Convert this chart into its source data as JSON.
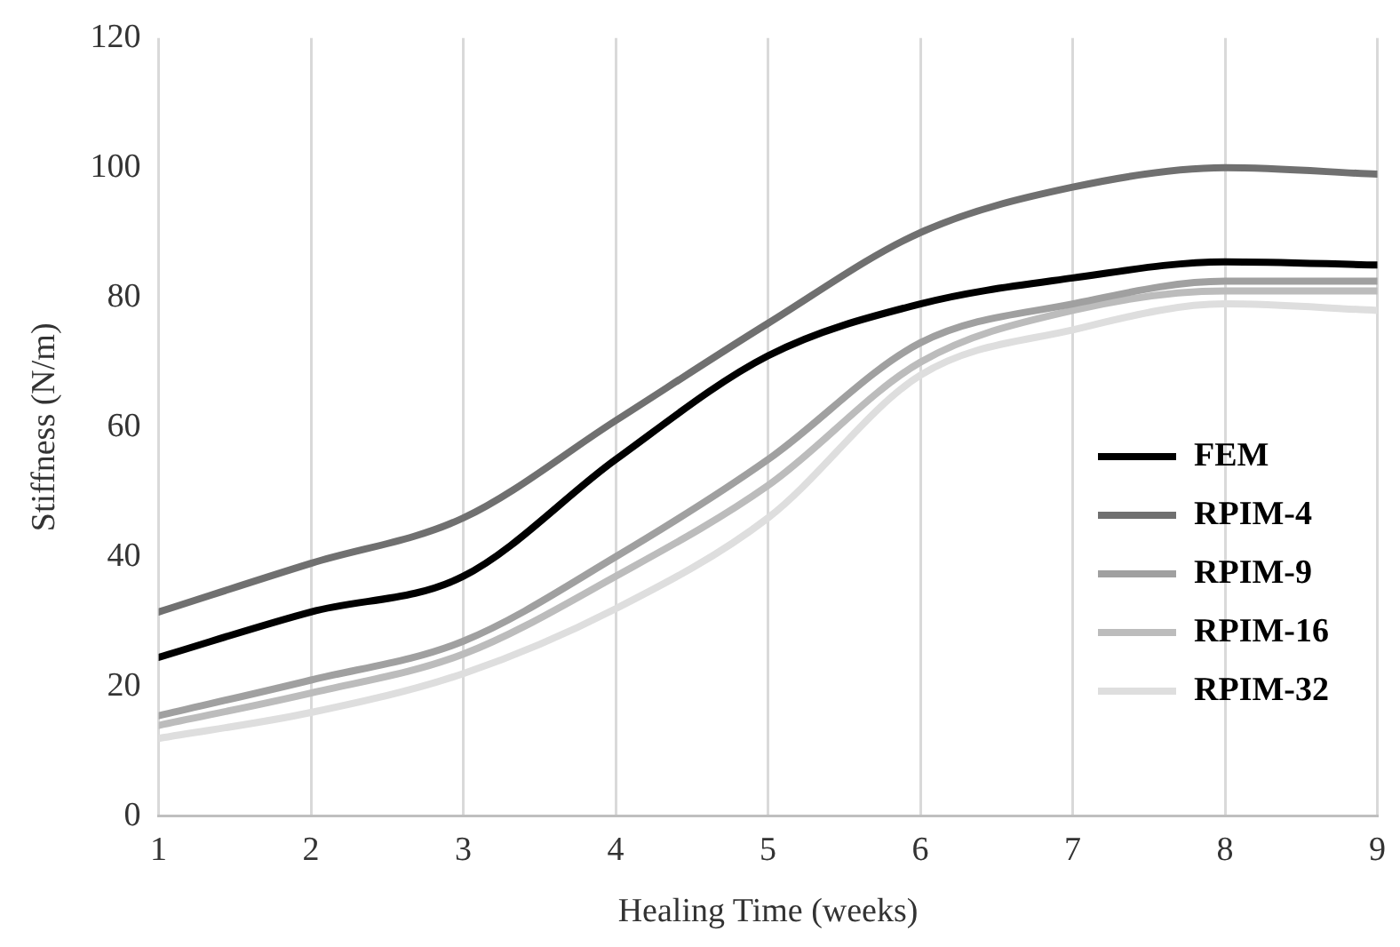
{
  "chart_data": {
    "type": "line",
    "xlabel": "Healing Time (weeks)",
    "ylabel": "Stiffness (N/m)",
    "x": [
      1,
      2,
      3,
      4,
      5,
      6,
      7,
      8,
      9
    ],
    "xlim": [
      1,
      9
    ],
    "xticks": [
      1,
      2,
      3,
      4,
      5,
      6,
      7,
      8,
      9
    ],
    "ylim": [
      0,
      120
    ],
    "yticks": [
      0,
      20,
      40,
      60,
      80,
      100,
      120
    ],
    "grid": "x",
    "legend": "right",
    "marker": "none",
    "line_style": "solid",
    "series": [
      {
        "name": "FEM",
        "color": "#000000",
        "values": [
          24.5,
          31.5,
          37,
          55,
          71,
          79,
          83,
          85.5,
          85
        ]
      },
      {
        "name": "RPIM-4",
        "color": "#707070",
        "values": [
          31.5,
          39,
          46,
          61,
          76,
          90,
          97,
          100,
          99
        ]
      },
      {
        "name": "RPIM-9",
        "color": "#a0a0a0",
        "values": [
          15.5,
          21,
          27,
          40,
          55,
          73,
          79,
          82.5,
          82.5
        ]
      },
      {
        "name": "RPIM-16",
        "color": "#bcbcbc",
        "values": [
          14,
          19,
          25,
          37,
          51,
          70,
          78,
          81,
          81
        ]
      },
      {
        "name": "RPIM-32",
        "color": "#dedede",
        "values": [
          12,
          16,
          22,
          32,
          46,
          68,
          75,
          79,
          78
        ]
      }
    ]
  }
}
